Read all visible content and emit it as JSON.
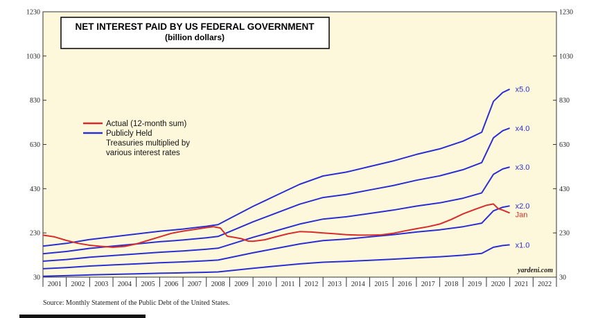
{
  "source_note": "Source: Monthly Statement of the Public Debt of the United States.",
  "chart_data": {
    "type": "line",
    "title": "NET INTEREST PAID BY US FEDERAL GOVERNMENT",
    "subtitle": "(billion dollars)",
    "xlabel": "",
    "ylabel": "",
    "ylim": [
      30,
      1230
    ],
    "xlim": [
      2001,
      2023
    ],
    "y_ticks": [
      30,
      230,
      430,
      630,
      830,
      1030,
      1230
    ],
    "x_ticks": [
      "2001",
      "2002",
      "2003",
      "2004",
      "2005",
      "2006",
      "2007",
      "2008",
      "2009",
      "2010",
      "2011",
      "2012",
      "2013",
      "2014",
      "2015",
      "2016",
      "2017",
      "2018",
      "2019",
      "2020",
      "2021",
      "2022"
    ],
    "grid": false,
    "legend_position": "upper-left",
    "legend": [
      {
        "label": "Actual (12-month sum)",
        "color": "#d62c2c"
      },
      {
        "label": "Publicly Held",
        "color": "#2a2fd0"
      }
    ],
    "legend_note_lines": [
      "Treasuries multiplied by",
      "various interest rates"
    ],
    "credit": "yardeni.com",
    "end_label_actual": "Jan",
    "colors": {
      "plot_bg": "#fdf8dc",
      "actual": "#d62c2c",
      "multiples": "#2a2fd0"
    },
    "actual_series": {
      "name": "Actual (12-month sum)",
      "x": [
        2001.0,
        2001.5,
        2002.0,
        2002.5,
        2003.0,
        2003.5,
        2004.0,
        2004.5,
        2005.0,
        2005.5,
        2006.0,
        2006.5,
        2007.0,
        2007.5,
        2008.0,
        2008.3,
        2008.6,
        2008.9,
        2009.2,
        2009.5,
        2009.8,
        2010.0,
        2010.5,
        2011.0,
        2011.5,
        2012.0,
        2012.5,
        2013.0,
        2013.5,
        2014.0,
        2014.5,
        2015.0,
        2015.5,
        2016.0,
        2016.5,
        2017.0,
        2017.5,
        2018.0,
        2018.5,
        2019.0,
        2019.5,
        2020.0,
        2020.3,
        2020.5,
        2020.7,
        2021.0
      ],
      "values": [
        220,
        212,
        196,
        183,
        174,
        169,
        165,
        169,
        180,
        196,
        212,
        228,
        238,
        246,
        254,
        258,
        252,
        215,
        210,
        204,
        193,
        192,
        199,
        213,
        226,
        236,
        234,
        230,
        226,
        222,
        220,
        220,
        221,
        228,
        239,
        249,
        258,
        270,
        291,
        316,
        336,
        355,
        361,
        340,
        333,
        320
      ]
    },
    "publicly_held_base": {
      "x": [
        2001.0,
        2002.0,
        2003.0,
        2004.0,
        2005.0,
        2006.0,
        2007.0,
        2008.0,
        2008.5,
        2009.0,
        2010.0,
        2011.0,
        2012.0,
        2013.0,
        2014.0,
        2015.0,
        2016.0,
        2017.0,
        2018.0,
        2019.0,
        2019.8,
        2020.3,
        2020.7,
        2021.0
      ],
      "values": [
        34.0,
        36.5,
        40.0,
        42.5,
        45.0,
        47.5,
        49.5,
        52.0,
        53.5,
        59.0,
        70.0,
        80.0,
        90.0,
        97.5,
        101.0,
        106.0,
        111.0,
        117.0,
        122.0,
        129.0,
        137.0,
        165.0,
        173.0,
        176.0
      ]
    },
    "series": [
      {
        "name": "x1.0",
        "multiplier": 1.0
      },
      {
        "name": "x2.0",
        "multiplier": 2.0
      },
      {
        "name": "x3.0",
        "multiplier": 3.0
      },
      {
        "name": "x4.0",
        "multiplier": 4.0
      },
      {
        "name": "x5.0",
        "multiplier": 5.0
      }
    ]
  }
}
